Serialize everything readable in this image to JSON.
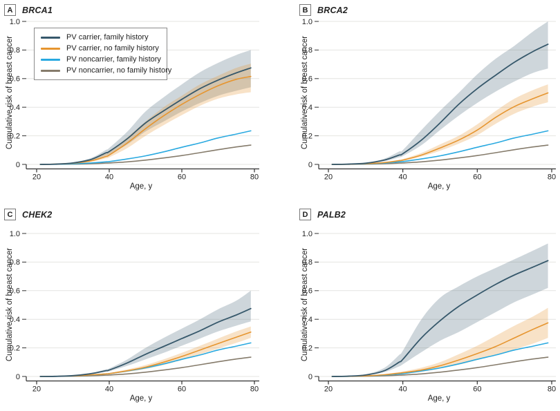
{
  "figure": {
    "background": "#ffffff"
  },
  "panels": [
    {
      "label": "A",
      "gene": "BRCA1"
    },
    {
      "label": "B",
      "gene": "BRCA2"
    },
    {
      "label": "C",
      "gene": "CHEK2"
    },
    {
      "label": "D",
      "gene": "PALB2"
    }
  ],
  "legend": {
    "items": [
      {
        "label": "PV carrier, family history",
        "key": "carrier_fh"
      },
      {
        "label": "PV carrier, no family history",
        "key": "carrier_nofh"
      },
      {
        "label": "PV noncarrier, family history",
        "key": "noncarrier_fh"
      },
      {
        "label": "PV noncarrier, no family history",
        "key": "noncarrier_nofh"
      }
    ]
  },
  "axes": {
    "x": {
      "title": "Age, y",
      "tick_labels": [
        "20",
        "40",
        "60",
        "80"
      ],
      "tick_values": [
        20,
        40,
        60,
        80
      ],
      "min": 20,
      "max": 80
    },
    "y": {
      "title": "Cumulative risk of breast cancer",
      "tick_labels": [
        "0",
        "0.2",
        "0.4",
        "0.6",
        "0.8",
        "1.0"
      ],
      "tick_values": [
        0,
        0.2,
        0.4,
        0.6,
        0.8,
        1.0
      ],
      "min": 0,
      "max": 1
    }
  },
  "colors": {
    "carrier_fh": "#36586B",
    "carrier_nofh": "#E6952F",
    "noncarrier_fh": "#29A9E0",
    "noncarrier_nofh": "#857B6B",
    "ci_carrier_fh": "#5D7788",
    "ci_carrier_nofh": "#E6952F",
    "grid": "#E4E4E1",
    "axis": "#2F2F2F",
    "text": "#222222"
  },
  "chart_data": [
    {
      "type": "line",
      "panel": "A",
      "title": "BRCA1",
      "xlabel": "Age, y",
      "ylabel": "Cumulative risk of breast cancer",
      "x": [
        21,
        25,
        30,
        35,
        39,
        40,
        45,
        50,
        55,
        60,
        65,
        70,
        75,
        79
      ],
      "xlim": [
        17,
        81
      ],
      "ylim": [
        0,
        1
      ],
      "grid": "horizontal",
      "legend_position": "upper-left",
      "series": [
        {
          "name": "PV carrier, family history",
          "key": "carrier_fh",
          "values": [
            0,
            0.002,
            0.01,
            0.035,
            0.08,
            0.09,
            0.18,
            0.29,
            0.375,
            0.455,
            0.53,
            0.59,
            0.64,
            0.675
          ],
          "ci_lower": [
            0,
            0.001,
            0.007,
            0.026,
            0.062,
            0.07,
            0.14,
            0.23,
            0.3,
            0.37,
            0.43,
            0.48,
            0.515,
            0.54
          ],
          "ci_upper": [
            0,
            0.003,
            0.013,
            0.045,
            0.1,
            0.115,
            0.23,
            0.37,
            0.47,
            0.56,
            0.645,
            0.71,
            0.765,
            0.8
          ]
        },
        {
          "name": "PV carrier, no family history",
          "key": "carrier_nofh",
          "values": [
            0,
            0.002,
            0.008,
            0.025,
            0.055,
            0.065,
            0.15,
            0.25,
            0.34,
            0.42,
            0.49,
            0.55,
            0.595,
            0.615
          ],
          "ci_lower": [
            0,
            0.001,
            0.006,
            0.018,
            0.042,
            0.05,
            0.115,
            0.2,
            0.275,
            0.345,
            0.41,
            0.46,
            0.49,
            0.505
          ],
          "ci_upper": [
            0,
            0.003,
            0.011,
            0.035,
            0.075,
            0.088,
            0.19,
            0.3,
            0.4,
            0.48,
            0.56,
            0.62,
            0.675,
            0.705
          ]
        },
        {
          "name": "PV noncarrier, family history",
          "key": "noncarrier_fh",
          "values": [
            0,
            0.001,
            0.004,
            0.01,
            0.018,
            0.02,
            0.038,
            0.06,
            0.088,
            0.12,
            0.15,
            0.185,
            0.212,
            0.235
          ]
        },
        {
          "name": "PV noncarrier, no family history",
          "key": "noncarrier_nofh",
          "values": [
            0,
            0.001,
            0.002,
            0.005,
            0.009,
            0.01,
            0.018,
            0.03,
            0.045,
            0.062,
            0.082,
            0.103,
            0.122,
            0.135
          ]
        }
      ]
    },
    {
      "type": "line",
      "panel": "B",
      "title": "BRCA2",
      "xlabel": "Age, y",
      "ylabel": "Cumulative risk of breast cancer",
      "x": [
        21,
        25,
        30,
        35,
        39,
        40,
        45,
        50,
        55,
        60,
        65,
        70,
        75,
        79
      ],
      "xlim": [
        17,
        81
      ],
      "ylim": [
        0,
        1
      ],
      "grid": "horizontal",
      "series": [
        {
          "name": "PV carrier, family history",
          "key": "carrier_fh",
          "values": [
            0,
            0.002,
            0.008,
            0.03,
            0.065,
            0.075,
            0.17,
            0.29,
            0.42,
            0.53,
            0.625,
            0.715,
            0.79,
            0.84
          ],
          "ci_lower": [
            0,
            0.001,
            0.006,
            0.022,
            0.05,
            0.058,
            0.135,
            0.24,
            0.34,
            0.43,
            0.51,
            0.58,
            0.64,
            0.67
          ],
          "ci_upper": [
            0,
            0.003,
            0.011,
            0.04,
            0.09,
            0.1,
            0.24,
            0.375,
            0.5,
            0.63,
            0.74,
            0.83,
            0.93,
            1.0
          ]
        },
        {
          "name": "PV carrier, no family history",
          "key": "carrier_nofh",
          "values": [
            0,
            0.001,
            0.005,
            0.013,
            0.026,
            0.03,
            0.065,
            0.115,
            0.17,
            0.24,
            0.33,
            0.405,
            0.46,
            0.5
          ],
          "ci_lower": [
            0,
            0.001,
            0.004,
            0.011,
            0.021,
            0.024,
            0.055,
            0.095,
            0.145,
            0.205,
            0.285,
            0.355,
            0.405,
            0.435
          ],
          "ci_upper": [
            0,
            0.002,
            0.006,
            0.016,
            0.032,
            0.037,
            0.08,
            0.14,
            0.2,
            0.28,
            0.375,
            0.46,
            0.52,
            0.56
          ]
        },
        {
          "name": "PV noncarrier, family history",
          "key": "noncarrier_fh",
          "values": [
            0,
            0.001,
            0.004,
            0.01,
            0.018,
            0.02,
            0.038,
            0.06,
            0.088,
            0.12,
            0.15,
            0.185,
            0.212,
            0.235
          ]
        },
        {
          "name": "PV noncarrier, no family history",
          "key": "noncarrier_nofh",
          "values": [
            0,
            0.001,
            0.002,
            0.005,
            0.009,
            0.01,
            0.018,
            0.03,
            0.045,
            0.062,
            0.082,
            0.103,
            0.122,
            0.135
          ]
        }
      ]
    },
    {
      "type": "line",
      "panel": "C",
      "title": "CHEK2",
      "xlabel": "Age, y",
      "ylabel": "Cumulative risk of breast cancer",
      "x": [
        21,
        25,
        30,
        35,
        39,
        40,
        45,
        50,
        55,
        60,
        65,
        70,
        75,
        79
      ],
      "xlim": [
        17,
        81
      ],
      "ylim": [
        0,
        1
      ],
      "grid": "horizontal",
      "series": [
        {
          "name": "PV carrier, family history",
          "key": "carrier_fh",
          "values": [
            0,
            0.001,
            0.006,
            0.02,
            0.04,
            0.045,
            0.095,
            0.155,
            0.21,
            0.265,
            0.32,
            0.38,
            0.43,
            0.475
          ],
          "ci_lower": [
            0,
            0.001,
            0.005,
            0.016,
            0.032,
            0.036,
            0.075,
            0.12,
            0.165,
            0.215,
            0.265,
            0.315,
            0.355,
            0.385
          ],
          "ci_upper": [
            0,
            0.002,
            0.008,
            0.025,
            0.05,
            0.056,
            0.12,
            0.2,
            0.27,
            0.335,
            0.4,
            0.47,
            0.53,
            0.6
          ]
        },
        {
          "name": "PV carrier, no family history",
          "key": "carrier_nofh",
          "values": [
            0,
            0.001,
            0.004,
            0.011,
            0.018,
            0.02,
            0.04,
            0.065,
            0.1,
            0.14,
            0.185,
            0.23,
            0.275,
            0.31
          ],
          "ci_lower": [
            0,
            0.001,
            0.003,
            0.009,
            0.015,
            0.017,
            0.032,
            0.052,
            0.08,
            0.115,
            0.155,
            0.195,
            0.235,
            0.27
          ],
          "ci_upper": [
            0,
            0.002,
            0.005,
            0.013,
            0.022,
            0.025,
            0.05,
            0.08,
            0.12,
            0.165,
            0.215,
            0.265,
            0.315,
            0.35
          ]
        },
        {
          "name": "PV noncarrier, family history",
          "key": "noncarrier_fh",
          "values": [
            0,
            0.001,
            0.004,
            0.01,
            0.018,
            0.02,
            0.038,
            0.06,
            0.088,
            0.12,
            0.15,
            0.185,
            0.212,
            0.235
          ]
        },
        {
          "name": "PV noncarrier, no family history",
          "key": "noncarrier_nofh",
          "values": [
            0,
            0.001,
            0.002,
            0.005,
            0.009,
            0.01,
            0.018,
            0.03,
            0.045,
            0.062,
            0.082,
            0.103,
            0.122,
            0.135
          ]
        }
      ]
    },
    {
      "type": "line",
      "panel": "D",
      "title": "PALB2",
      "xlabel": "Age, y",
      "ylabel": "Cumulative risk of breast cancer",
      "x": [
        21,
        25,
        30,
        35,
        39,
        40,
        45,
        50,
        55,
        60,
        65,
        70,
        75,
        79
      ],
      "xlim": [
        17,
        81
      ],
      "ylim": [
        0,
        1
      ],
      "grid": "horizontal",
      "series": [
        {
          "name": "PV carrier, family history",
          "key": "carrier_fh",
          "values": [
            0,
            0.002,
            0.01,
            0.04,
            0.1,
            0.12,
            0.27,
            0.39,
            0.49,
            0.57,
            0.645,
            0.71,
            0.765,
            0.81
          ],
          "ci_lower": [
            0,
            0.001,
            0.007,
            0.03,
            0.07,
            0.085,
            0.17,
            0.25,
            0.31,
            0.38,
            0.45,
            0.52,
            0.575,
            0.62
          ],
          "ci_upper": [
            0,
            0.003,
            0.015,
            0.06,
            0.15,
            0.18,
            0.4,
            0.55,
            0.63,
            0.7,
            0.76,
            0.82,
            0.88,
            0.93
          ]
        },
        {
          "name": "PV carrier, no family history",
          "key": "carrier_nofh",
          "values": [
            0,
            0.001,
            0.004,
            0.012,
            0.023,
            0.026,
            0.045,
            0.075,
            0.115,
            0.16,
            0.21,
            0.27,
            0.33,
            0.375
          ],
          "ci_lower": [
            0,
            0.001,
            0.003,
            0.009,
            0.017,
            0.019,
            0.033,
            0.055,
            0.082,
            0.115,
            0.15,
            0.19,
            0.23,
            0.27
          ],
          "ci_upper": [
            0,
            0.002,
            0.006,
            0.016,
            0.031,
            0.035,
            0.062,
            0.1,
            0.155,
            0.215,
            0.285,
            0.355,
            0.42,
            0.48
          ]
        },
        {
          "name": "PV noncarrier, family history",
          "key": "noncarrier_fh",
          "values": [
            0,
            0.001,
            0.004,
            0.01,
            0.018,
            0.02,
            0.038,
            0.06,
            0.088,
            0.12,
            0.15,
            0.185,
            0.212,
            0.235
          ]
        },
        {
          "name": "PV noncarrier, no family history",
          "key": "noncarrier_nofh",
          "values": [
            0,
            0.001,
            0.002,
            0.005,
            0.009,
            0.01,
            0.018,
            0.03,
            0.045,
            0.062,
            0.082,
            0.103,
            0.122,
            0.135
          ]
        }
      ]
    }
  ]
}
